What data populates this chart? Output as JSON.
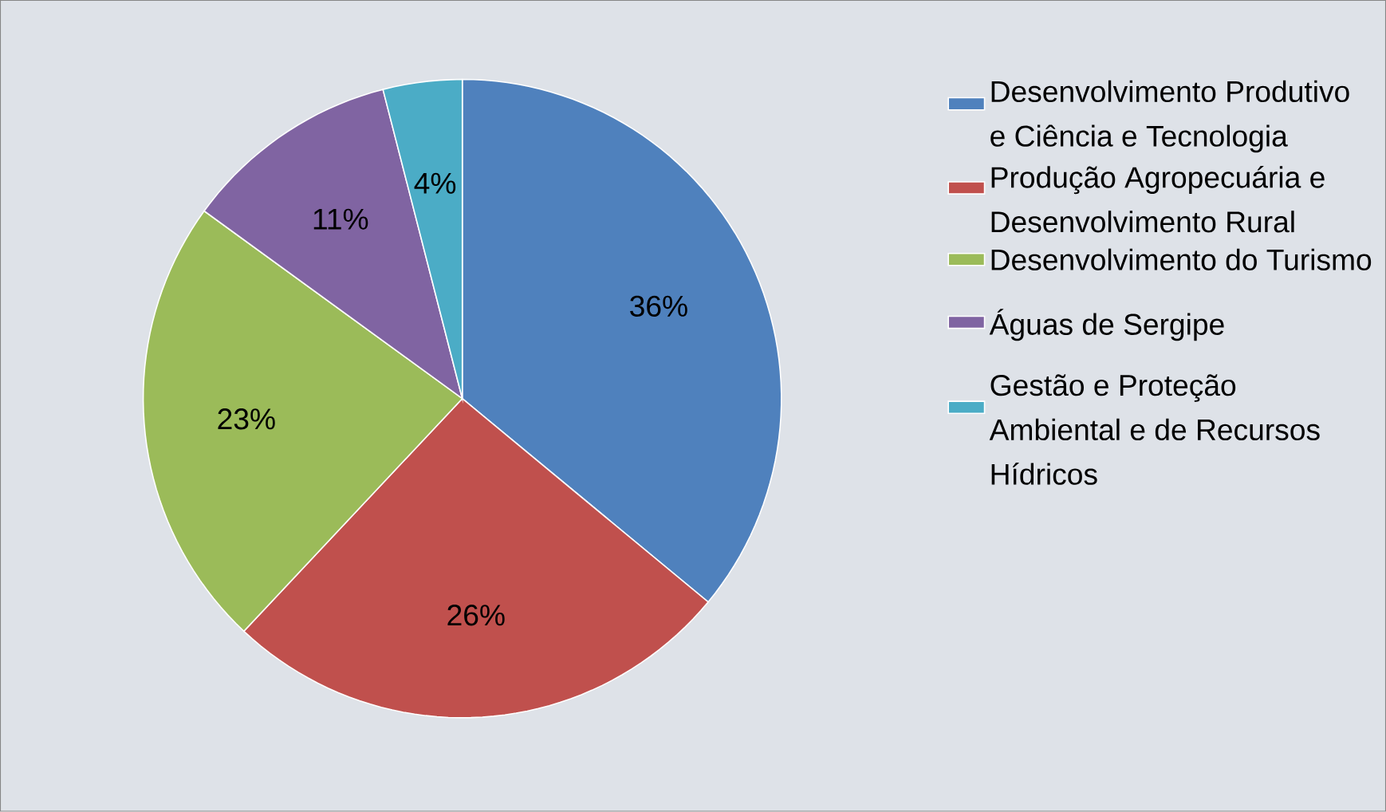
{
  "chart_data": {
    "type": "pie",
    "categories": [
      "Desenvolvimento Produtivo e Ciência e Tecnologia",
      "Produção Agropecuária e Desenvolvimento Rural",
      "Desenvolvimento do Turismo",
      "Águas de Sergipe",
      "Gestão e Proteção Ambiental e de Recursos Hídricos"
    ],
    "values": [
      36,
      26,
      23,
      11,
      4
    ],
    "colors": [
      "#4f81bd",
      "#c0504d",
      "#9bbb59",
      "#8064a2",
      "#4bacc6"
    ],
    "value_labels": [
      "36%",
      "26%",
      "23%",
      "11%",
      "4%"
    ],
    "legend": "right"
  }
}
